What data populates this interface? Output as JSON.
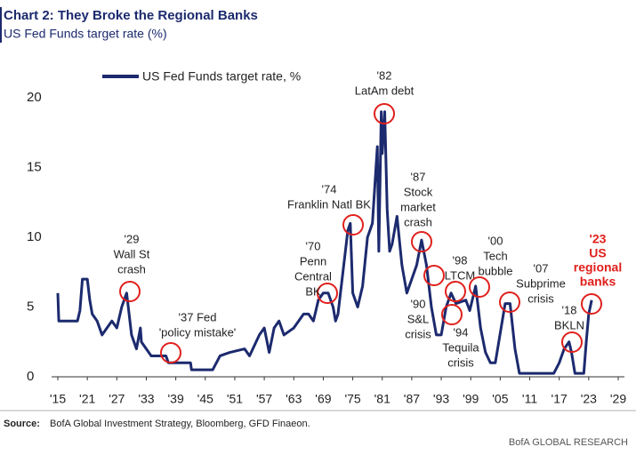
{
  "chart_data": {
    "type": "line",
    "title": "Chart 2: They Broke the Regional Banks",
    "subtitle": "US Fed Funds target rate (%)",
    "source_label": "Source:",
    "source": "BofA Global Investment Strategy, Bloomberg, GFD Finaeon.",
    "footer": "BofA GLOBAL RESEARCH",
    "xlim": [
      1915,
      2029
    ],
    "xticks": [
      {
        "value": 1915,
        "label": "'15"
      },
      {
        "value": 1921,
        "label": "'21"
      },
      {
        "value": 1927,
        "label": "'27"
      },
      {
        "value": 1933,
        "label": "'33"
      },
      {
        "value": 1939,
        "label": "'39"
      },
      {
        "value": 1945,
        "label": "'45"
      },
      {
        "value": 1951,
        "label": "'51"
      },
      {
        "value": 1957,
        "label": "'57"
      },
      {
        "value": 1963,
        "label": "'63"
      },
      {
        "value": 1969,
        "label": "'69"
      },
      {
        "value": 1975,
        "label": "'75"
      },
      {
        "value": 1981,
        "label": "'81"
      },
      {
        "value": 1987,
        "label": "'87"
      },
      {
        "value": 1993,
        "label": "'93"
      },
      {
        "value": 1999,
        "label": "'99"
      },
      {
        "value": 2005,
        "label": "'05"
      },
      {
        "value": 2011,
        "label": "'11"
      },
      {
        "value": 2017,
        "label": "'17"
      },
      {
        "value": 2023,
        "label": "'23"
      },
      {
        "value": 2029,
        "label": "'29"
      }
    ],
    "ylim": [
      0,
      20
    ],
    "yticks": [
      0,
      5,
      10,
      15,
      20
    ],
    "grid": false,
    "series": [
      {
        "name": "US Fed Funds target rate, %",
        "color": "#1c2a6e",
        "x": [
          1915,
          1915.2,
          1919,
          1919.5,
          1920,
          1921,
          1921.5,
          1922,
          1923,
          1924,
          1925,
          1926,
          1927,
          1928,
          1929,
          1930,
          1931,
          1931.8,
          1932,
          1933,
          1934,
          1937,
          1937.5,
          1942,
          1942.2,
          1946.5,
          1948,
          1950,
          1953,
          1954,
          1956,
          1957,
          1958,
          1959,
          1960,
          1961,
          1963,
          1965,
          1966,
          1967,
          1968,
          1969,
          1970,
          1971,
          1971.5,
          1972,
          1973,
          1974,
          1974.5,
          1975,
          1976,
          1977,
          1978,
          1979,
          1980,
          1980.3,
          1980.8,
          1981,
          1981.5,
          1982,
          1982.5,
          1983,
          1984,
          1985,
          1986,
          1987,
          1988,
          1989,
          1990,
          1991,
          1992,
          1993,
          1994,
          1995,
          1996,
          1998,
          1998.8,
          2000,
          2001,
          2002,
          2003,
          2004,
          2006,
          2007,
          2008,
          2008.9,
          2015.9,
          2017,
          2018,
          2019,
          2019.5,
          2020.2,
          2022,
          2022.5,
          2023,
          2023.6
        ],
        "values": [
          6,
          4,
          4,
          4.75,
          7,
          7,
          5.5,
          4.5,
          4,
          3,
          3.5,
          4,
          3.5,
          5,
          6,
          3,
          2,
          3.5,
          2.5,
          2,
          1.5,
          1.5,
          1,
          1,
          0.5,
          0.5,
          1.5,
          1.75,
          2,
          1.5,
          3,
          3.5,
          1.75,
          3.5,
          4,
          3,
          3.5,
          4.5,
          4.5,
          4,
          5.5,
          6,
          6,
          5,
          4,
          4.5,
          7.5,
          10.5,
          11,
          6,
          5,
          6.5,
          10,
          11,
          16.5,
          9,
          19,
          16,
          19,
          12,
          9,
          9.5,
          11.5,
          8,
          6,
          7,
          8,
          9.8,
          8,
          5,
          3,
          3,
          5,
          6,
          5.25,
          5.5,
          4.75,
          6.5,
          3.5,
          1.75,
          1,
          1,
          5.25,
          5.25,
          2,
          0.25,
          0.25,
          1,
          2,
          2.5,
          1.75,
          0.25,
          0.25,
          2.5,
          4.5,
          5.5
        ]
      }
    ],
    "annotations": [
      {
        "lines": [
          "'29",
          "Wall St",
          "crash"
        ]
      },
      {
        "lines": [
          "'37 Fed",
          "'policy mistake'"
        ]
      },
      {
        "lines": [
          "'70",
          "Penn",
          "Central",
          "BK"
        ]
      },
      {
        "lines": [
          "'74",
          "Franklin Natl BK"
        ]
      },
      {
        "lines": [
          "'82",
          "LatAm debt"
        ]
      },
      {
        "lines": [
          "'87",
          "Stock",
          "market",
          "crash"
        ]
      },
      {
        "lines": [
          "'90",
          "S&L",
          "crisis"
        ]
      },
      {
        "lines": [
          "'94",
          "Tequila",
          "crisis"
        ]
      },
      {
        "lines": [
          "'98",
          "LTCM"
        ]
      },
      {
        "lines": [
          "'00",
          "Tech",
          "bubble"
        ]
      },
      {
        "lines": [
          "'07",
          "Subprime",
          "crisis"
        ]
      },
      {
        "lines": [
          "'18",
          "BKLN"
        ]
      },
      {
        "lines": [
          "'23",
          "US",
          "regional",
          "banks"
        ],
        "color": "#e0201c"
      }
    ]
  }
}
